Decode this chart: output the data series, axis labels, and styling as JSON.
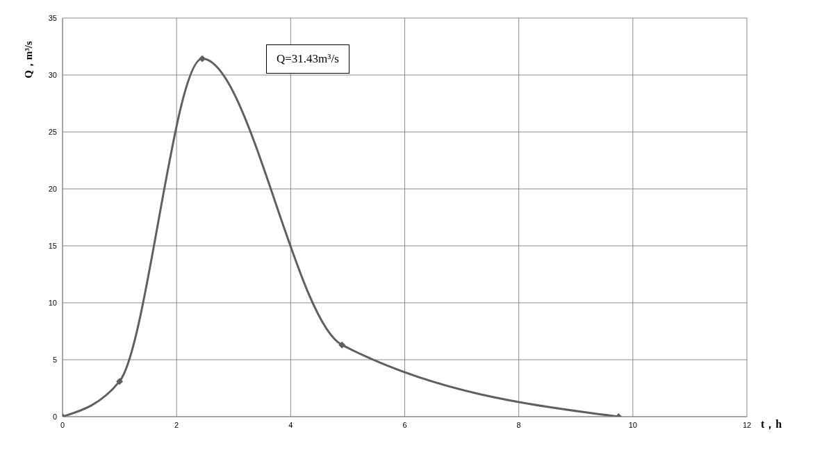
{
  "chart_data": {
    "type": "line",
    "xlabel": "t，h",
    "ylabel": "Q，m³/s",
    "x": [
      0,
      1,
      2.45,
      4.9,
      9.75
    ],
    "series": [
      {
        "color": "#5f5f5f",
        "values": [
          0,
          3.1,
          31.43,
          6.3,
          0
        ]
      }
    ],
    "xlim": [
      0,
      12
    ],
    "xticks": [
      0,
      2,
      4,
      6,
      8,
      10,
      12
    ],
    "ylim": [
      0,
      35
    ],
    "yticks": [
      0,
      5,
      10,
      15,
      20,
      25,
      30,
      35
    ],
    "grid": true,
    "legend": false,
    "marker": "diamond",
    "line_style": "solid",
    "annotations": [
      "Q=31.43m³/s"
    ]
  }
}
